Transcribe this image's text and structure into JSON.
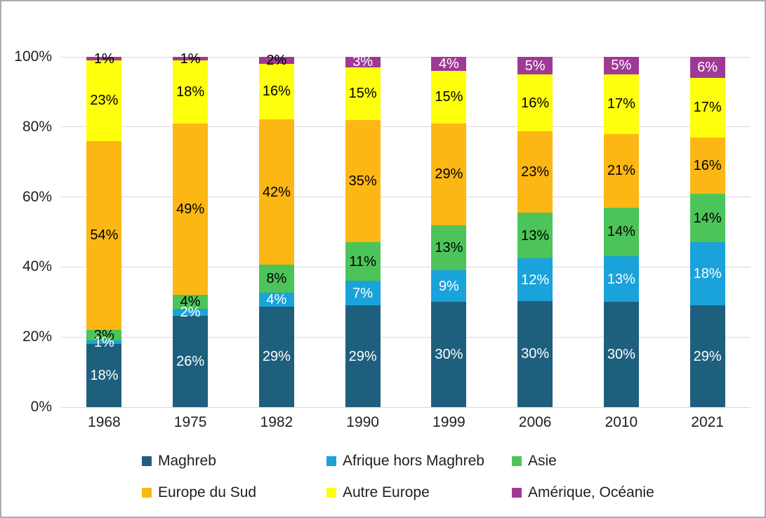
{
  "chart_data": {
    "type": "bar",
    "stacked": true,
    "units": "percent",
    "title": "",
    "xlabel": "",
    "ylabel": "",
    "categories": [
      "1968",
      "1975",
      "1982",
      "1990",
      "1999",
      "2006",
      "2010",
      "2021"
    ],
    "series": [
      {
        "name": "Maghreb",
        "color": "#1F5F7E",
        "label_color": "#FFFFFF",
        "values": [
          18,
          26,
          29,
          29,
          30,
          30,
          30,
          29
        ],
        "labels": [
          "18%",
          "26%",
          "29%",
          "29%",
          "30%",
          "30%",
          "30%",
          "29%"
        ]
      },
      {
        "name": "Afrique hors Maghreb",
        "color": "#1AA2DB",
        "label_color": "#FFFFFF",
        "values": [
          1,
          2,
          4,
          7,
          9,
          12,
          13,
          18
        ],
        "labels": [
          "1%",
          "2%",
          "4%",
          "7%",
          "9%",
          "12%",
          "13%",
          "18%"
        ]
      },
      {
        "name": "Asie",
        "color": "#4CC45A",
        "label_color": "#000000",
        "values": [
          3,
          4,
          8,
          11,
          13,
          13,
          14,
          14
        ],
        "labels": [
          "3%",
          "4%",
          "8%",
          "11%",
          "13%",
          "13%",
          "14%",
          "14%"
        ]
      },
      {
        "name": "Europe du Sud",
        "color": "#FDB714",
        "label_color": "#000000",
        "values": [
          54,
          49,
          42,
          35,
          29,
          23,
          21,
          16
        ],
        "labels": [
          "54%",
          "49%",
          "42%",
          "35%",
          "29%",
          "23%",
          "21%",
          "16%"
        ]
      },
      {
        "name": "Autre Europe",
        "color": "#FEFF0D",
        "label_color": "#000000",
        "values": [
          23,
          18,
          16,
          15,
          15,
          16,
          17,
          17
        ],
        "labels": [
          "23%",
          "18%",
          "16%",
          "15%",
          "15%",
          "16%",
          "17%",
          "17%"
        ]
      },
      {
        "name": "Amérique, Océanie",
        "color": "#9E3A96",
        "label_color": "#FFFFFF",
        "label_colors": [
          "#000000",
          "#000000",
          "#000000",
          "#FFFFFF",
          "#FFFFFF",
          "#FFFFFF",
          "#FFFFFF",
          "#FFFFFF"
        ],
        "values": [
          1,
          1,
          2,
          3,
          4,
          5,
          5,
          6
        ],
        "labels": [
          "1%",
          "1%",
          "2%",
          "3%",
          "4%",
          "5%",
          "5%",
          "6%"
        ]
      }
    ],
    "yticks": [
      "0%",
      "20%",
      "40%",
      "60%",
      "80%",
      "100%"
    ],
    "ylim": [
      0,
      100
    ],
    "grid": true,
    "legend_position": "bottom",
    "colors": {
      "gridline": "#D9D9D9",
      "axis_text": "#1F1F1F",
      "border": "#ABABAB",
      "background": "#FFFFFF"
    }
  }
}
